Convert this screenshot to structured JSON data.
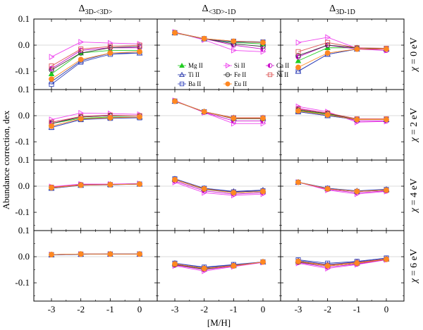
{
  "chart_data": {
    "type": "line",
    "x": [
      -3,
      -2,
      -1,
      0
    ],
    "xtick_labels": [
      "-3",
      "-2",
      "-1",
      "0"
    ],
    "ytick_labels": [
      "0.1",
      "0.0",
      "-0.1"
    ],
    "ylim": [
      -0.17,
      0.1
    ],
    "xlim": [
      -3.6,
      0.6
    ],
    "xlabel": "[M/H]",
    "ylabel": "Abundance correction, dex",
    "columns": [
      {
        "base": "Δ",
        "sub": "3D-<3D>"
      },
      {
        "base": "Δ",
        "sub": "<3D>-1D"
      },
      {
        "base": "Δ",
        "sub": "3D-1D"
      }
    ],
    "rows": [
      {
        "chi": "χ",
        "label": " = 0 eV"
      },
      {
        "chi": "χ",
        "label": " = 2 eV"
      },
      {
        "chi": "χ",
        "label": " = 4 eV"
      },
      {
        "chi": "χ",
        "label": " = 6 eV"
      }
    ],
    "legend": [
      {
        "name": "Mg II",
        "marker": "triangle-filled",
        "color": "#22cc22"
      },
      {
        "name": "Si II",
        "marker": "triangle-right-open",
        "color": "#ee44ee"
      },
      {
        "name": "Ca II",
        "marker": "circle-half",
        "color": "#cc11cc"
      },
      {
        "name": "Ti II",
        "marker": "triangle-open",
        "color": "#2233aa"
      },
      {
        "name": "Fe II",
        "marker": "circle-open",
        "color": "#333333"
      },
      {
        "name": "Ni II",
        "marker": "square-open",
        "color": "#dd5555"
      },
      {
        "name": "Ba II",
        "marker": "square-open",
        "color": "#3344bb"
      },
      {
        "name": "Eu II",
        "marker": "circle-filled",
        "color": "#ff8822"
      }
    ],
    "panels": [
      [
        {
          "Mg II": [
            -0.11,
            -0.03,
            -0.02,
            -0.02
          ],
          "Si II": [
            -0.045,
            0.012,
            0.008,
            0.005
          ],
          "Ca II": [
            -0.09,
            -0.02,
            -0.01,
            -0.01
          ],
          "Ti II": [
            -0.14,
            -0.06,
            -0.03,
            -0.03
          ],
          "Fe II": [
            -0.095,
            -0.03,
            -0.01,
            -0.005
          ],
          "Ni II": [
            -0.08,
            -0.015,
            -0.005,
            0.0
          ],
          "Ba II": [
            -0.15,
            -0.065,
            -0.035,
            -0.03
          ],
          "Eu II": [
            -0.13,
            -0.055,
            -0.03,
            -0.025
          ]
        },
        {
          "Mg II": [
            0.048,
            0.025,
            0.01,
            0.005
          ],
          "Si II": [
            0.05,
            0.02,
            -0.02,
            -0.025
          ],
          "Ca II": [
            0.048,
            0.025,
            0.0,
            -0.015
          ],
          "Ti II": [
            0.047,
            0.024,
            0.012,
            0.01
          ],
          "Fe II": [
            0.048,
            0.025,
            0.005,
            -0.005
          ],
          "Ni II": [
            0.048,
            0.025,
            0.015,
            0.012
          ],
          "Ba II": [
            0.047,
            0.024,
            0.015,
            0.012
          ],
          "Eu II": [
            0.047,
            0.025,
            0.015,
            0.01
          ]
        },
        {
          "Mg II": [
            -0.06,
            -0.01,
            -0.01,
            -0.015
          ],
          "Si II": [
            0.01,
            0.03,
            -0.012,
            -0.02
          ],
          "Ca II": [
            -0.045,
            0.0,
            -0.015,
            -0.02
          ],
          "Ti II": [
            -0.1,
            -0.035,
            -0.015,
            -0.015
          ],
          "Fe II": [
            -0.04,
            0.0,
            -0.01,
            -0.015
          ],
          "Ni II": [
            -0.025,
            0.01,
            -0.01,
            -0.012
          ],
          "Ba II": [
            -0.1,
            -0.035,
            -0.015,
            -0.015
          ],
          "Eu II": [
            -0.085,
            -0.03,
            -0.015,
            -0.015
          ]
        }
      ],
      [
        {
          "Mg II": [
            -0.03,
            -0.01,
            -0.005,
            -0.005
          ],
          "Si II": [
            -0.015,
            0.01,
            0.008,
            0.005
          ],
          "Ca II": [
            -0.025,
            -0.005,
            0.0,
            0.0
          ],
          "Ti II": [
            -0.045,
            -0.015,
            -0.008,
            -0.005
          ],
          "Fe II": [
            -0.03,
            -0.005,
            0.0,
            0.0
          ],
          "Ni II": [
            -0.025,
            -0.003,
            0.002,
            0.0
          ],
          "Ba II": [
            -0.045,
            -0.015,
            -0.01,
            -0.008
          ],
          "Eu II": [
            -0.04,
            -0.012,
            -0.008,
            -0.005
          ]
        },
        {
          "Mg II": [
            0.055,
            0.015,
            -0.01,
            -0.01
          ],
          "Si II": [
            0.058,
            0.012,
            -0.03,
            -0.03
          ],
          "Ca II": [
            0.056,
            0.013,
            -0.02,
            -0.02
          ],
          "Ti II": [
            0.055,
            0.015,
            -0.008,
            -0.008
          ],
          "Fe II": [
            0.056,
            0.015,
            -0.012,
            -0.012
          ],
          "Ni II": [
            0.056,
            0.015,
            -0.008,
            -0.008
          ],
          "Ba II": [
            0.055,
            0.015,
            -0.01,
            -0.01
          ],
          "Eu II": [
            0.055,
            0.015,
            -0.01,
            -0.01
          ]
        },
        {
          "Mg II": [
            0.02,
            0.005,
            -0.015,
            -0.015
          ],
          "Si II": [
            0.035,
            0.015,
            -0.025,
            -0.022
          ],
          "Ca II": [
            0.028,
            0.01,
            -0.02,
            -0.02
          ],
          "Ti II": [
            0.015,
            0.0,
            -0.015,
            -0.015
          ],
          "Fe II": [
            0.022,
            0.008,
            -0.015,
            -0.015
          ],
          "Ni II": [
            0.025,
            0.01,
            -0.012,
            -0.012
          ],
          "Ba II": [
            0.015,
            0.0,
            -0.015,
            -0.015
          ],
          "Eu II": [
            0.018,
            0.003,
            -0.015,
            -0.015
          ]
        }
      ],
      [
        {
          "Mg II": [
            -0.005,
            0.005,
            0.007,
            0.008
          ],
          "Si II": [
            -0.002,
            0.008,
            0.008,
            0.01
          ],
          "Ca II": [
            -0.004,
            0.006,
            0.007,
            0.008
          ],
          "Ti II": [
            -0.008,
            0.003,
            0.006,
            0.008
          ],
          "Fe II": [
            -0.005,
            0.005,
            0.006,
            0.008
          ],
          "Ni II": [
            -0.004,
            0.005,
            0.006,
            0.008
          ],
          "Ba II": [
            -0.008,
            0.004,
            0.005,
            0.008
          ],
          "Eu II": [
            -0.006,
            0.004,
            0.006,
            0.008
          ]
        },
        {
          "Mg II": [
            0.025,
            -0.01,
            -0.025,
            -0.02
          ],
          "Si II": [
            0.015,
            -0.025,
            -0.035,
            -0.03
          ],
          "Ca II": [
            0.02,
            -0.018,
            -0.03,
            -0.025
          ],
          "Ti II": [
            0.028,
            -0.008,
            -0.02,
            -0.015
          ],
          "Fe II": [
            0.025,
            -0.012,
            -0.025,
            -0.02
          ],
          "Ni II": [
            0.025,
            -0.01,
            -0.022,
            -0.018
          ],
          "Ba II": [
            0.028,
            -0.008,
            -0.022,
            -0.018
          ],
          "Eu II": [
            0.025,
            -0.01,
            -0.025,
            -0.02
          ]
        },
        {
          "Mg II": [
            0.015,
            -0.01,
            -0.02,
            -0.015
          ],
          "Si II": [
            0.015,
            -0.015,
            -0.03,
            -0.02
          ],
          "Ca II": [
            0.015,
            -0.012,
            -0.025,
            -0.018
          ],
          "Ti II": [
            0.015,
            -0.008,
            -0.018,
            -0.012
          ],
          "Fe II": [
            0.015,
            -0.01,
            -0.02,
            -0.015
          ],
          "Ni II": [
            0.015,
            -0.01,
            -0.02,
            -0.015
          ],
          "Ba II": [
            0.015,
            -0.008,
            -0.02,
            -0.013
          ],
          "Eu II": [
            0.015,
            -0.01,
            -0.02,
            -0.015
          ]
        }
      ],
      [
        {
          "Mg II": [
            0.008,
            0.01,
            0.01,
            0.01
          ],
          "Si II": [
            0.008,
            0.01,
            0.01,
            0.01
          ],
          "Ca II": [
            0.008,
            0.01,
            0.01,
            0.01
          ],
          "Ti II": [
            0.007,
            0.009,
            0.01,
            0.01
          ],
          "Fe II": [
            0.008,
            0.01,
            0.01,
            0.01
          ],
          "Ni II": [
            0.008,
            0.01,
            0.01,
            0.01
          ],
          "Ba II": [
            0.007,
            0.009,
            0.01,
            0.01
          ],
          "Eu II": [
            0.008,
            0.01,
            0.01,
            0.01
          ]
        },
        {
          "Mg II": [
            -0.03,
            -0.048,
            -0.035,
            -0.02
          ],
          "Si II": [
            -0.035,
            -0.055,
            -0.038,
            -0.022
          ],
          "Ca II": [
            -0.032,
            -0.05,
            -0.036,
            -0.021
          ],
          "Ti II": [
            -0.025,
            -0.042,
            -0.032,
            -0.02
          ],
          "Fe II": [
            -0.03,
            -0.046,
            -0.035,
            -0.02
          ],
          "Ni II": [
            -0.028,
            -0.045,
            -0.034,
            -0.02
          ],
          "Ba II": [
            -0.025,
            -0.04,
            -0.03,
            -0.02
          ],
          "Eu II": [
            -0.028,
            -0.045,
            -0.035,
            -0.02
          ]
        },
        {
          "Mg II": [
            -0.02,
            -0.035,
            -0.025,
            -0.01
          ],
          "Si II": [
            -0.025,
            -0.045,
            -0.03,
            -0.012
          ],
          "Ca II": [
            -0.022,
            -0.04,
            -0.028,
            -0.011
          ],
          "Ti II": [
            -0.015,
            -0.03,
            -0.02,
            -0.008
          ],
          "Fe II": [
            -0.02,
            -0.035,
            -0.025,
            -0.01
          ],
          "Ni II": [
            -0.018,
            -0.032,
            -0.022,
            -0.009
          ],
          "Ba II": [
            -0.012,
            -0.025,
            -0.018,
            -0.005
          ],
          "Eu II": [
            -0.018,
            -0.035,
            -0.025,
            -0.01
          ]
        }
      ]
    ]
  }
}
